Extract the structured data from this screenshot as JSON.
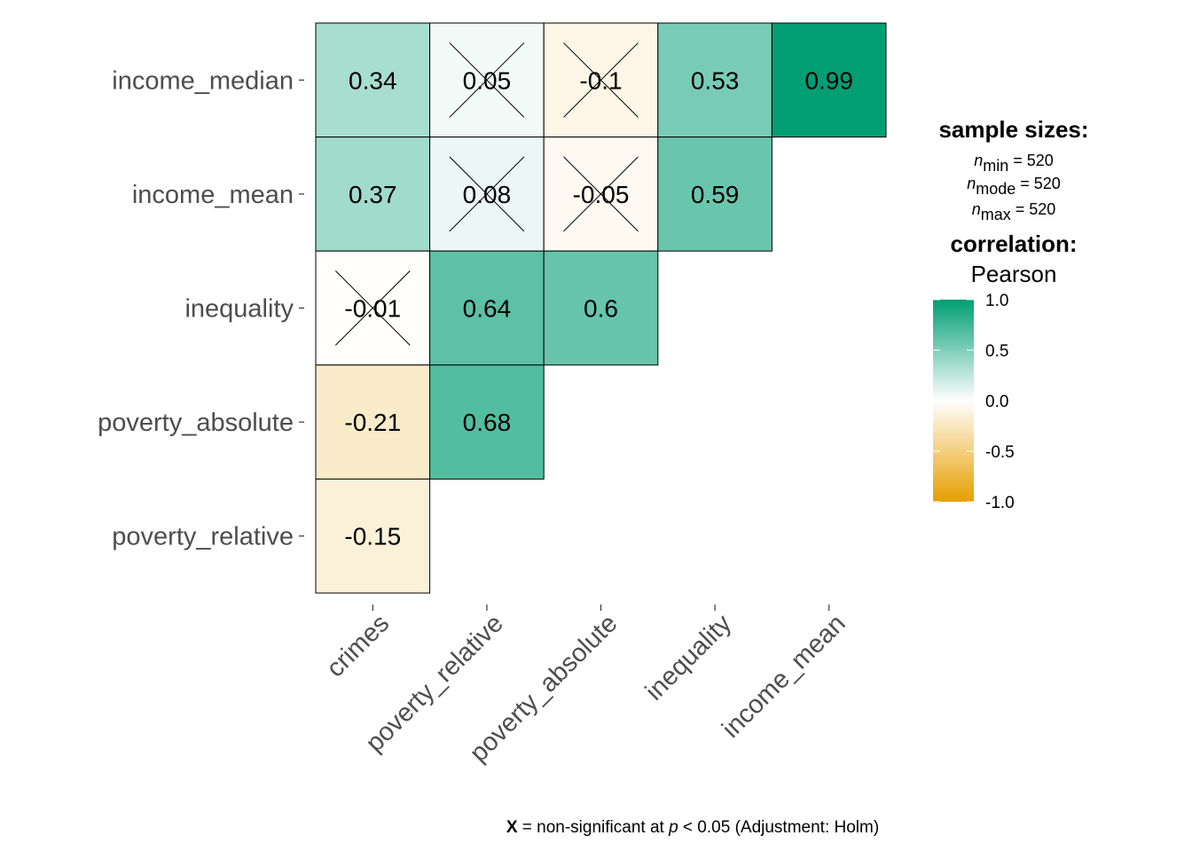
{
  "chart_data": {
    "type": "heatmap",
    "rows": [
      "income_median",
      "income_mean",
      "inequality",
      "poverty_absolute",
      "poverty_relative"
    ],
    "columns": [
      "crimes",
      "poverty_relative",
      "poverty_absolute",
      "inequality",
      "income_mean"
    ],
    "cells": [
      {
        "row": "income_median",
        "col": "crimes",
        "value": 0.34,
        "label": "0.34",
        "nonsig": false
      },
      {
        "row": "income_median",
        "col": "poverty_relative",
        "value": 0.05,
        "label": "0.05",
        "nonsig": true
      },
      {
        "row": "income_median",
        "col": "poverty_absolute",
        "value": -0.1,
        "label": "-0.1",
        "nonsig": true
      },
      {
        "row": "income_median",
        "col": "inequality",
        "value": 0.53,
        "label": "0.53",
        "nonsig": false
      },
      {
        "row": "income_median",
        "col": "income_mean",
        "value": 0.99,
        "label": "0.99",
        "nonsig": false
      },
      {
        "row": "income_mean",
        "col": "crimes",
        "value": 0.37,
        "label": "0.37",
        "nonsig": false
      },
      {
        "row": "income_mean",
        "col": "poverty_relative",
        "value": 0.08,
        "label": "0.08",
        "nonsig": true
      },
      {
        "row": "income_mean",
        "col": "poverty_absolute",
        "value": -0.05,
        "label": "-0.05",
        "nonsig": true
      },
      {
        "row": "income_mean",
        "col": "inequality",
        "value": 0.59,
        "label": "0.59",
        "nonsig": false
      },
      {
        "row": "inequality",
        "col": "crimes",
        "value": -0.01,
        "label": "-0.01",
        "nonsig": true
      },
      {
        "row": "inequality",
        "col": "poverty_relative",
        "value": 0.64,
        "label": "0.64",
        "nonsig": false
      },
      {
        "row": "inequality",
        "col": "poverty_absolute",
        "value": 0.6,
        "label": "0.6",
        "nonsig": false
      },
      {
        "row": "poverty_absolute",
        "col": "crimes",
        "value": -0.21,
        "label": "-0.21",
        "nonsig": false
      },
      {
        "row": "poverty_absolute",
        "col": "poverty_relative",
        "value": 0.68,
        "label": "0.68",
        "nonsig": false
      },
      {
        "row": "poverty_relative",
        "col": "crimes",
        "value": -0.15,
        "label": "-0.15",
        "nonsig": false
      }
    ],
    "colorscale": {
      "low": "#E69F00",
      "mid": "#FFFFFF",
      "high": "#009E73",
      "limits": [
        -1,
        1
      ]
    },
    "legend": {
      "sample_sizes_title": "sample sizes:",
      "n_lines": [
        {
          "sub": "min",
          "value": "= 520"
        },
        {
          "sub": "mode",
          "value": "= 520"
        },
        {
          "sub": "max",
          "value": "= 520"
        }
      ],
      "correlation_title": "correlation:",
      "method": "Pearson",
      "ticks": [
        1.0,
        0.5,
        0.0,
        -0.5,
        -1.0
      ],
      "tick_labels": [
        "1.0",
        "0.5",
        "0.0",
        "-0.5",
        "-1.0"
      ],
      "placement": "right"
    },
    "caption": {
      "x_symbol": "X",
      "text1": " = non-significant at ",
      "p": "p",
      "text2": " < 0.05 (Adjustment: Holm)"
    }
  }
}
